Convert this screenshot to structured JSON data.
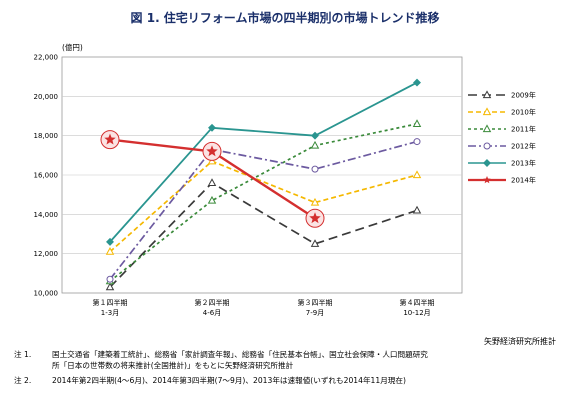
{
  "title": "図 1. 住宅リフォーム市場の四半期別の市場トレンド推移",
  "source": "矢野経済研究所推計",
  "notes": [
    {
      "label": "注 1.",
      "text": "国土交通省「建築着工統計」、総務省「家計調査年報」、総務省「住民基本台帳」、国立社会保障・人口問題研究",
      "text2": "所「日本の世帯数の将来推計(全国推計)」をもとに矢野経済研究所推計"
    },
    {
      "label": "注 2.",
      "text": "2014年第2四半期(4～6月)、2014年第3四半期(7～9月)、2013年は速報値(いずれも2014年11月現在)",
      "text2": ""
    }
  ],
  "chart_data": {
    "type": "line",
    "ylabel": "(億円)",
    "ylim": [
      10000,
      22000
    ],
    "yticks": [
      10000,
      12000,
      14000,
      16000,
      18000,
      20000,
      22000
    ],
    "ytick_labels": [
      "10,000",
      "12,000",
      "14,000",
      "16,000",
      "18,000",
      "20,000",
      "22,000"
    ],
    "categories": [
      {
        "label": "第１四半期",
        "sub": "1-3月"
      },
      {
        "label": "第２四半期",
        "sub": "4-6月"
      },
      {
        "label": "第３四半期",
        "sub": "7-9月"
      },
      {
        "label": "第４四半期",
        "sub": "10-12月"
      }
    ],
    "grid": true,
    "legend_position": "right",
    "series": [
      {
        "name": "2009年",
        "color": "#3a3a3a",
        "marker": "triangle",
        "dash": "9,5",
        "values": [
          10300,
          15600,
          12500,
          14200
        ]
      },
      {
        "name": "2010年",
        "color": "#f5b800",
        "marker": "triangle",
        "dash": "5,3",
        "values": [
          12100,
          16700,
          14600,
          16000
        ]
      },
      {
        "name": "2011年",
        "color": "#3a8a3a",
        "marker": "triangle",
        "dash": "3,3",
        "values": [
          10600,
          14700,
          17500,
          18600
        ]
      },
      {
        "name": "2012年",
        "color": "#6c5aa0",
        "marker": "circle",
        "dash": "8,3,2,3",
        "values": [
          10700,
          17300,
          16300,
          17700
        ]
      },
      {
        "name": "2013年",
        "color": "#2a9590",
        "marker": "diamond",
        "dash": "",
        "values": [
          12600,
          18400,
          18000,
          20700
        ]
      },
      {
        "name": "2014年",
        "color": "#d42f2f",
        "marker": "star",
        "dash": "",
        "values": [
          17800,
          17200,
          13800,
          null
        ]
      }
    ]
  }
}
